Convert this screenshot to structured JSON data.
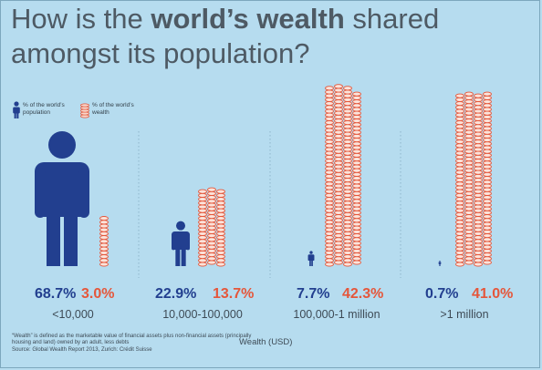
{
  "title": {
    "line1_pre": "How is the ",
    "line1_bold": "world’s wealth",
    "line1_post": " shared",
    "line2": "amongst its population?"
  },
  "legend": {
    "population": "% of the world’s population",
    "wealth": "% of the world’s wealth"
  },
  "colors": {
    "background": "#b6dcef",
    "population": "#223f8f",
    "wealth": "#e5563a",
    "text": "#4e5a64"
  },
  "icons": {
    "population": "person-icon",
    "wealth": "coin-stack-icon"
  },
  "chart_data": {
    "type": "bar",
    "title": "How is the world’s wealth shared amongst its population?",
    "xlabel": "Wealth (USD)",
    "categories": [
      "<10,000",
      "10,000-100,000",
      "100,000-1 million",
      ">1 million"
    ],
    "series": [
      {
        "name": "% of the world’s population",
        "values": [
          68.7,
          22.9,
          7.7,
          0.7
        ],
        "labels": [
          "68.7%",
          "22.9%",
          "7.7%",
          "0.7%"
        ]
      },
      {
        "name": "% of the world’s wealth",
        "values": [
          3.0,
          13.7,
          42.3,
          41.0
        ],
        "labels": [
          "3.0%",
          "13.7%",
          "42.3%",
          "41.0%"
        ]
      }
    ]
  },
  "footnote": {
    "line1": "“Wealth” is defined as the marketable value of financial assets plus non-financial assets (principally housing and land) owned by an adult, less debts",
    "line2": "Source: Global Wealth Report 2013, Zurich: Crédit Suisse"
  }
}
